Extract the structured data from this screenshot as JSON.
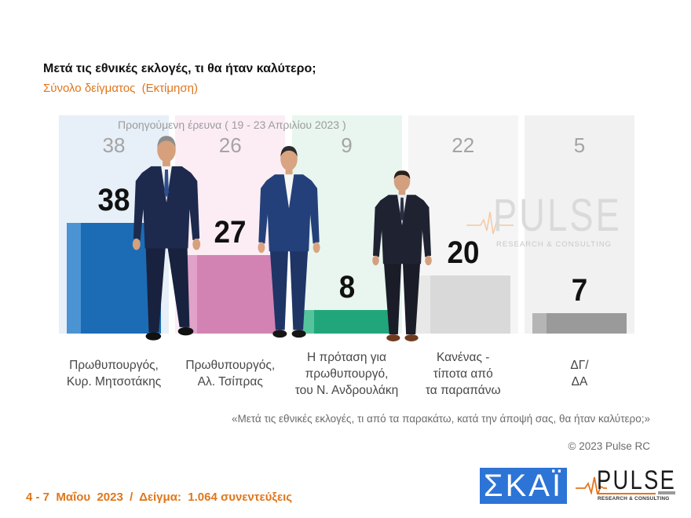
{
  "chart_data": {
    "type": "bar",
    "title": "Μετά τις εθνικές εκλογές, τι θα ήταν καλύτερο;",
    "subtitle": "Σύνολο δείγματος  (Εκτίμηση)",
    "categories": [
      "Πρωθυπουργός,\nΚυρ. Μητσοτάκης",
      "Πρωθυπουργός,\nΑλ. Τσίπρας",
      "Η πρόταση για\nπρωθυπουργό,\nτου Ν. Ανδρουλάκη",
      "Κανένας -\nτίποτα από\nτα παραπάνω",
      "ΔΓ/\nΔΑ"
    ],
    "series": [
      {
        "values": [
          38,
          27,
          8,
          20,
          7
        ],
        "colors": [
          "#1c6cb5",
          "#d283b3",
          "#20a67a",
          "#d9d9d9",
          "#9a9a9a"
        ],
        "highlight_colors": [
          "#4b93d3",
          "#e0a2c9",
          "#55c49c",
          "#e8e8e8",
          "#b5b5b5"
        ]
      },
      {
        "name": "Προηγούμενη έρευνα ( 19 - 23 Απριλίου 2023 )",
        "values": [
          38,
          26,
          9,
          22,
          5
        ]
      }
    ],
    "column_tints": [
      "#e7eff8",
      "#fcedf5",
      "#e8f6ef",
      "#f5f5f5",
      "#f1f1f1"
    ],
    "ylim": [
      0,
      75
    ],
    "grid": false,
    "legend": "top",
    "data_labels": true
  },
  "question": "«Μετά τις εθνικές εκλογές, τι από τα παρακάτω, κατά την άποψή σας, θα ήταν καλύτερο;»",
  "copyright": "© 2023 Pulse RC",
  "footer": {
    "fieldwork": "4 - 7  Μαΐου  2023  /  Δείγμα:  1.064 συνεντεύξεις"
  },
  "logos": {
    "skai": "ΣΚΑΪ",
    "pulse": "PULSE",
    "pulse_tagline": "RESEARCH & CONSULTING",
    "watermark": "PULSE",
    "watermark_tagline": "RESEARCH & CONSULTING"
  },
  "colors": {
    "accent_orange": "#e0761a",
    "skai_blue": "#2c74d6",
    "pulse_orange": "#e8731a"
  }
}
